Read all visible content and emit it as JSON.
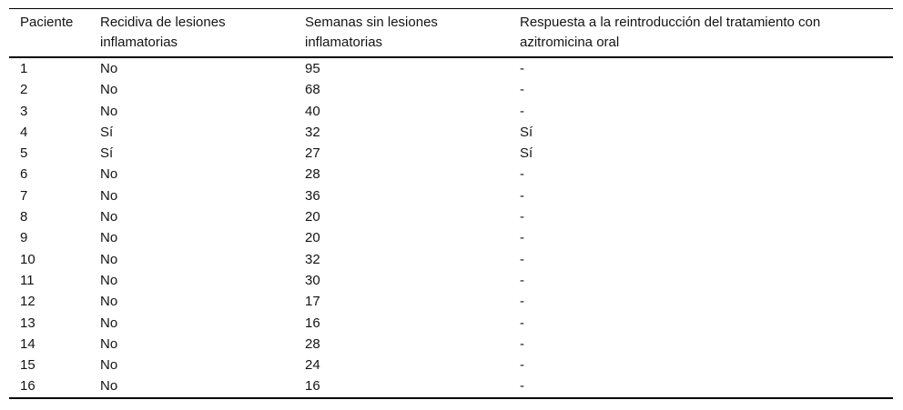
{
  "page": {
    "background": "#ffffff",
    "text_color": "#141414",
    "rule_color": "#000000"
  },
  "table": {
    "columns": [
      {
        "id": "paciente",
        "label": "Paciente"
      },
      {
        "id": "recidiva",
        "label": "Recidiva de lesiones inflamatorias"
      },
      {
        "id": "semanas",
        "label": "Semanas sin lesiones inflamatorias"
      },
      {
        "id": "respuesta",
        "label": "Respuesta a la reintroducción del tratamiento con azitromicina oral"
      }
    ],
    "rows": [
      [
        "1",
        "No",
        "95",
        "-"
      ],
      [
        "2",
        "No",
        "68",
        "-"
      ],
      [
        "3",
        "No",
        "40",
        "-"
      ],
      [
        "4",
        "Sí",
        "32",
        "Sí"
      ],
      [
        "5",
        "Sí",
        "27",
        "Sí"
      ],
      [
        "6",
        "No",
        "28",
        "-"
      ],
      [
        "7",
        "No",
        "36",
        "-"
      ],
      [
        "8",
        "No",
        "20",
        "-"
      ],
      [
        "9",
        "No",
        "20",
        "-"
      ],
      [
        "10",
        "No",
        "32",
        "-"
      ],
      [
        "11",
        "No",
        "30",
        "-"
      ],
      [
        "12",
        "No",
        "17",
        "-"
      ],
      [
        "13",
        "No",
        "16",
        "-"
      ],
      [
        "14",
        "No",
        "28",
        "-"
      ],
      [
        "15",
        "No",
        "24",
        "-"
      ],
      [
        "16",
        "No",
        "16",
        "-"
      ]
    ]
  },
  "chart_data": {
    "type": "table",
    "title": "",
    "columns": [
      "Paciente",
      "Recidiva de lesiones inflamatorias",
      "Semanas sin lesiones inflamatorias",
      "Respuesta a la reintroducción del tratamiento con azitromicina oral"
    ],
    "rows": [
      [
        "1",
        "No",
        95,
        "-"
      ],
      [
        "2",
        "No",
        68,
        "-"
      ],
      [
        "3",
        "No",
        40,
        "-"
      ],
      [
        "4",
        "Sí",
        32,
        "Sí"
      ],
      [
        "5",
        "Sí",
        27,
        "Sí"
      ],
      [
        "6",
        "No",
        28,
        "-"
      ],
      [
        "7",
        "No",
        36,
        "-"
      ],
      [
        "8",
        "No",
        20,
        "-"
      ],
      [
        "9",
        "No",
        20,
        "-"
      ],
      [
        "10",
        "No",
        32,
        "-"
      ],
      [
        "11",
        "No",
        30,
        "-"
      ],
      [
        "12",
        "No",
        17,
        "-"
      ],
      [
        "13",
        "No",
        16,
        "-"
      ],
      [
        "14",
        "No",
        28,
        "-"
      ],
      [
        "15",
        "No",
        24,
        "-"
      ],
      [
        "16",
        "No",
        16,
        "-"
      ]
    ]
  }
}
